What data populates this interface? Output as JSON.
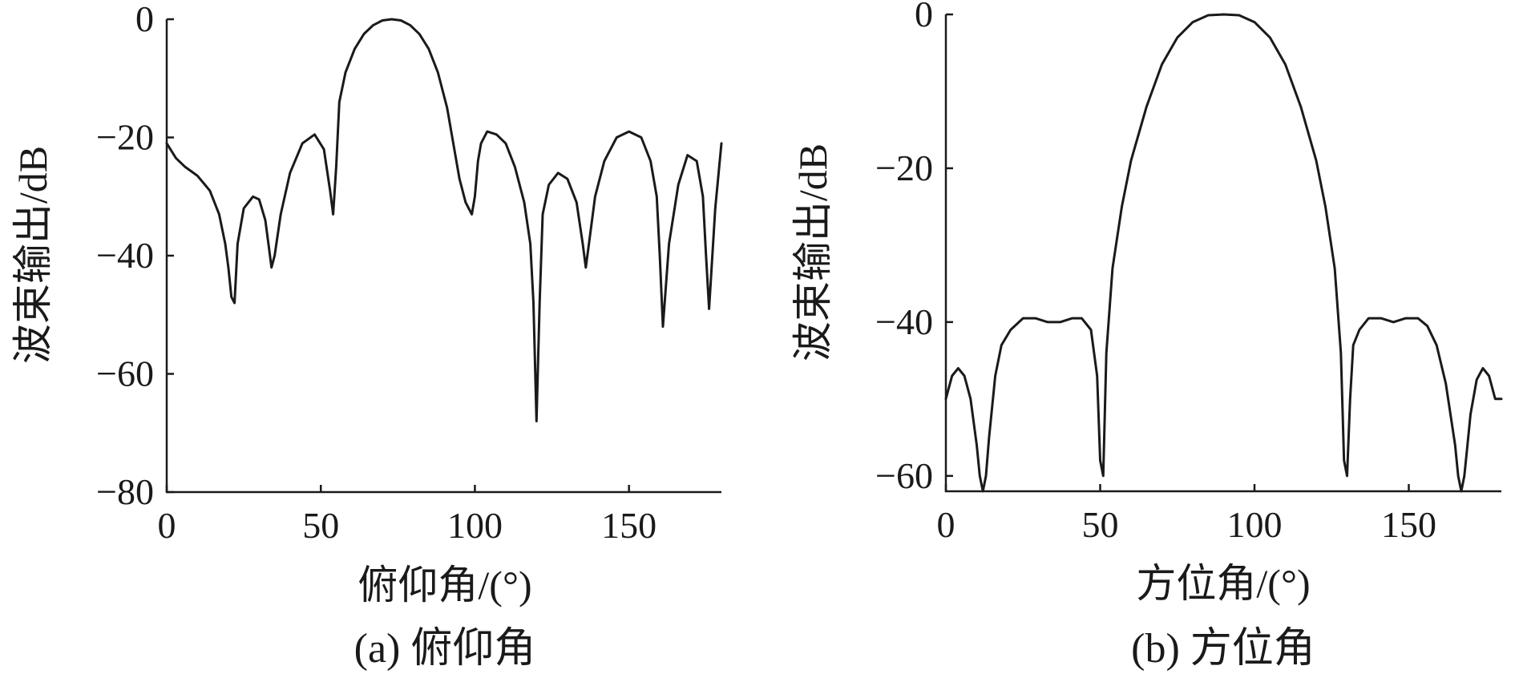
{
  "chart_data": [
    {
      "type": "line",
      "caption": "(a) 俯仰角",
      "xlabel": "俯仰角/(°)",
      "ylabel": "波束输出/dB",
      "xlim": [
        0,
        180
      ],
      "ylim": [
        -80,
        0
      ],
      "xticks": [
        0,
        50,
        100,
        150
      ],
      "yticks": [
        0,
        -20,
        -40,
        -60,
        -80
      ],
      "grid": false,
      "series": [
        {
          "x": [
            0,
            3,
            6,
            10,
            14,
            17,
            19,
            20,
            21,
            22,
            23,
            25,
            28,
            30,
            32,
            33,
            34,
            35,
            37,
            40,
            44,
            48,
            51,
            53,
            54,
            55,
            56,
            58,
            61,
            64,
            67,
            70,
            73,
            76,
            79,
            82,
            85,
            88,
            91,
            93,
            95,
            97,
            99,
            100,
            101,
            102,
            104,
            107,
            110,
            113,
            116,
            118,
            119,
            120,
            121,
            122,
            124,
            127,
            130,
            133,
            135,
            136,
            137,
            139,
            142,
            146,
            150,
            154,
            157,
            159,
            160,
            161,
            163,
            166,
            169,
            172,
            174,
            175,
            176,
            178,
            180
          ],
          "y": [
            -21,
            -23.5,
            -25,
            -26.5,
            -29,
            -33,
            -38,
            -42,
            -47,
            -48,
            -38,
            -32,
            -30,
            -30.5,
            -34,
            -38,
            -42,
            -40,
            -33,
            -26,
            -21,
            -19.5,
            -22,
            -29,
            -33,
            -25,
            -14,
            -9,
            -5,
            -2.5,
            -1,
            -0.2,
            0,
            -0.2,
            -1,
            -2.5,
            -5,
            -9,
            -15,
            -21,
            -27,
            -31,
            -33,
            -30,
            -24,
            -21,
            -19,
            -19.5,
            -21,
            -25,
            -31,
            -38,
            -48,
            -68,
            -48,
            -33,
            -28,
            -26,
            -27,
            -31,
            -38,
            -42,
            -38,
            -30,
            -24,
            -20,
            -19,
            -20,
            -24,
            -30,
            -40,
            -52,
            -38,
            -28,
            -23,
            -24,
            -30,
            -40,
            -49,
            -32,
            -21
          ]
        }
      ]
    },
    {
      "type": "line",
      "caption": "(b) 方位角",
      "xlabel": "方位角/(°)",
      "ylabel": "波束输出/dB",
      "xlim": [
        0,
        180
      ],
      "ylim": [
        -62,
        0
      ],
      "xticks": [
        0,
        50,
        100,
        150
      ],
      "yticks": [
        0,
        -20,
        -40,
        -60
      ],
      "grid": false,
      "series": [
        {
          "x": [
            0,
            2,
            4,
            6,
            8,
            10,
            11,
            12,
            13,
            14,
            16,
            18,
            21,
            25,
            29,
            33,
            37,
            41,
            44,
            47,
            49,
            50,
            51,
            52,
            54,
            57,
            60,
            65,
            70,
            75,
            80,
            85,
            90,
            95,
            100,
            105,
            110,
            115,
            120,
            123,
            126,
            128,
            129,
            130,
            131,
            132,
            134,
            137,
            141,
            145,
            149,
            153,
            156,
            159,
            162,
            165,
            166,
            167,
            168,
            169,
            170,
            172,
            174,
            176,
            178,
            180
          ],
          "y": [
            -50,
            -47,
            -46,
            -47,
            -50,
            -56,
            -60,
            -62,
            -60,
            -55,
            -47,
            -43,
            -41,
            -39.5,
            -39.5,
            -40,
            -40,
            -39.5,
            -39.5,
            -41,
            -47,
            -58,
            -60,
            -44,
            -33,
            -25,
            -19,
            -12,
            -6.5,
            -3,
            -1,
            -0.1,
            0,
            -0.1,
            -1,
            -3,
            -6.5,
            -12,
            -19,
            -25,
            -33,
            -44,
            -58,
            -60,
            -50,
            -43,
            -41,
            -39.5,
            -39.5,
            -40,
            -39.5,
            -39.5,
            -40.5,
            -43,
            -48,
            -56,
            -60,
            -62,
            -60,
            -56,
            -52,
            -47.5,
            -46,
            -47,
            -50,
            -50
          ]
        }
      ]
    }
  ]
}
